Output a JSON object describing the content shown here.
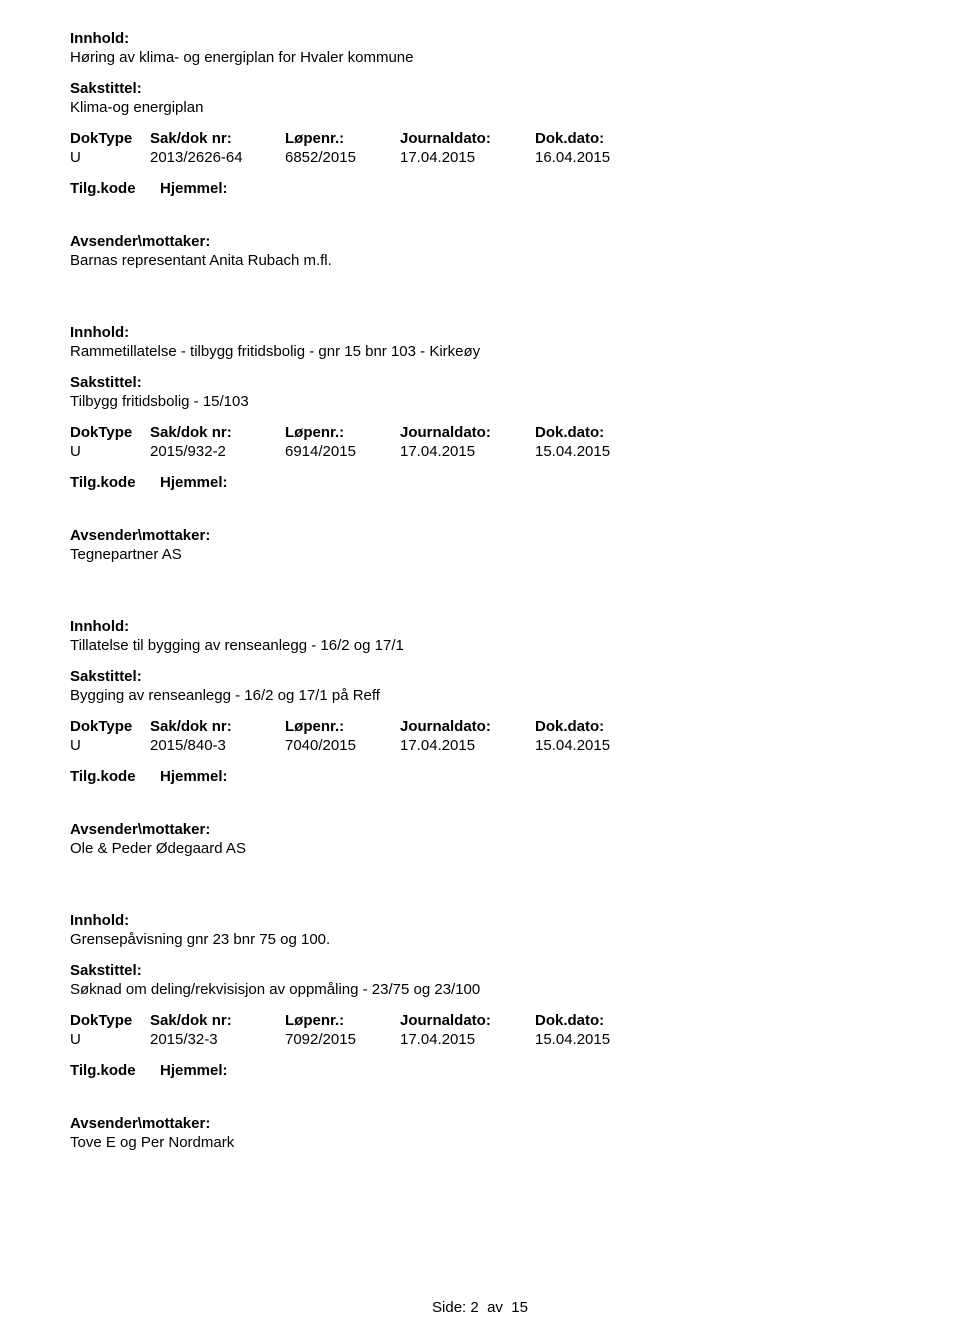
{
  "labels": {
    "innhold": "Innhold:",
    "sakstittel": "Sakstittel:",
    "doktype": "DokType",
    "sakdok": "Sak/dok nr:",
    "lopenr": "Løpenr.:",
    "journaldato": "Journaldato:",
    "dokdato": "Dok.dato:",
    "tilgkode": "Tilg.kode",
    "hjemmel": "Hjemmel:",
    "avsender": "Avsender\\mottaker:"
  },
  "entries": [
    {
      "innhold": "Høring av klima- og energiplan for Hvaler kommune",
      "sakstittel": "Klima-og energiplan",
      "doktype": "U",
      "sakdok": "2013/2626-64",
      "lopenr": "6852/2015",
      "journaldato": "17.04.2015",
      "dokdato": "16.04.2015",
      "avsender": "Barnas representant Anita Rubach m.fl."
    },
    {
      "innhold": "Rammetillatelse - tilbygg fritidsbolig - gnr 15 bnr 103 - Kirkeøy",
      "sakstittel": "Tilbygg fritidsbolig - 15/103",
      "doktype": "U",
      "sakdok": "2015/932-2",
      "lopenr": "6914/2015",
      "journaldato": "17.04.2015",
      "dokdato": "15.04.2015",
      "avsender": "Tegnepartner AS"
    },
    {
      "innhold": "Tillatelse til bygging av renseanlegg - 16/2 og 17/1",
      "sakstittel": "Bygging av renseanlegg - 16/2 og 17/1 på Reff",
      "doktype": "U",
      "sakdok": "2015/840-3",
      "lopenr": "7040/2015",
      "journaldato": "17.04.2015",
      "dokdato": "15.04.2015",
      "avsender": "Ole & Peder Ødegaard AS"
    },
    {
      "innhold": "Grensepåvisning gnr 23 bnr 75 og 100.",
      "sakstittel": "Søknad om deling/rekvisisjon av oppmåling - 23/75 og 23/100",
      "doktype": "U",
      "sakdok": "2015/32-3",
      "lopenr": "7092/2015",
      "journaldato": "17.04.2015",
      "dokdato": "15.04.2015",
      "avsender": "Tove E og Per Nordmark"
    }
  ],
  "footer": {
    "side_label": "Side:",
    "page": "2",
    "av": "av",
    "total": "15"
  }
}
